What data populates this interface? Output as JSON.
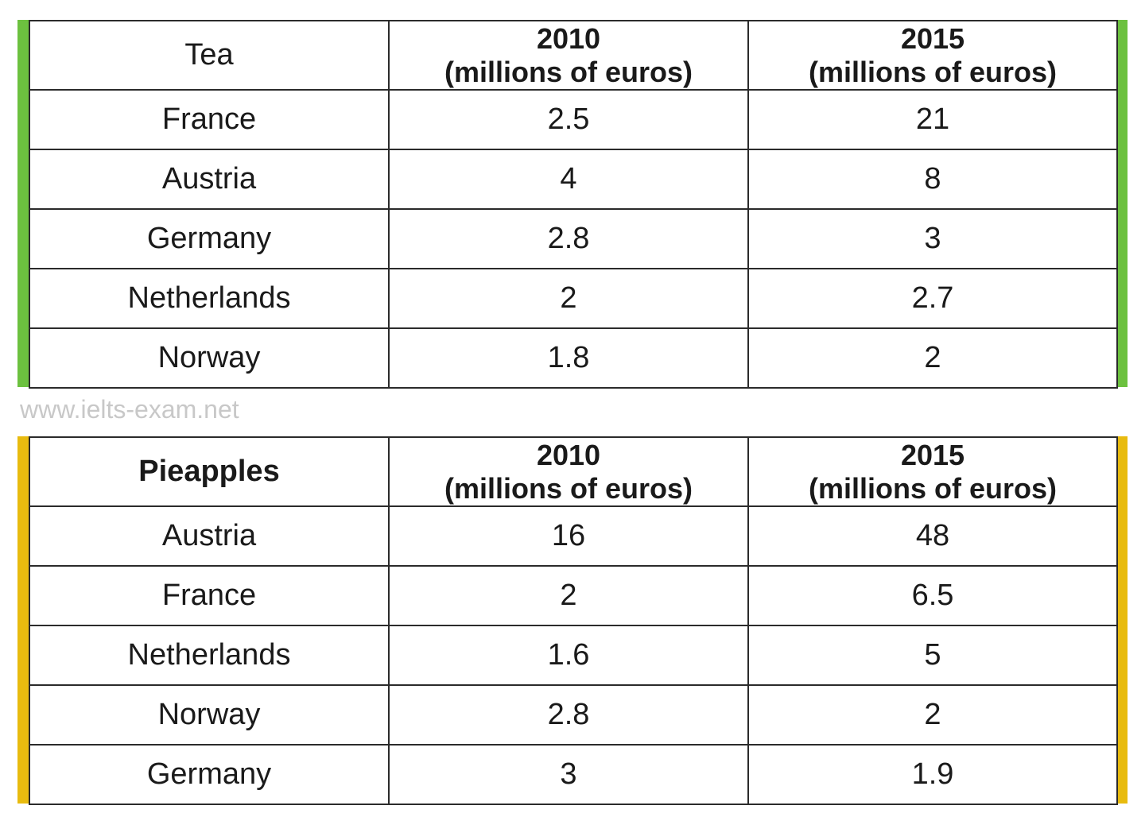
{
  "watermark": "www.ielts-exam.net",
  "colors": {
    "tea_accent": "#6cc13f",
    "pineapple_accent": "#e8bb0f",
    "border": "#2b2b2b",
    "watermark": "#c8c8c8"
  },
  "chart_data": [
    {
      "type": "table",
      "accent_color": "#6cc13f",
      "header": {
        "product": "Tea",
        "product_bold": false,
        "col1_year": "2010",
        "col1_unit": "(millions of euros)",
        "col2_year": "2015",
        "col2_unit": "(millions of euros)"
      },
      "rows": [
        {
          "country": "France",
          "v2010": "2.5",
          "v2015": "21"
        },
        {
          "country": "Austria",
          "v2010": "4",
          "v2015": "8"
        },
        {
          "country": "Germany",
          "v2010": "2.8",
          "v2015": "3"
        },
        {
          "country": "Netherlands",
          "v2010": "2",
          "v2015": "2.7"
        },
        {
          "country": "Norway",
          "v2010": "1.8",
          "v2015": "2"
        }
      ]
    },
    {
      "type": "table",
      "accent_color": "#e8bb0f",
      "header": {
        "product": "Pieapples",
        "product_bold": true,
        "col1_year": "2010",
        "col1_unit": "(millions of euros)",
        "col2_year": "2015",
        "col2_unit": "(millions of euros)"
      },
      "rows": [
        {
          "country": "Austria",
          "v2010": "16",
          "v2015": "48"
        },
        {
          "country": "France",
          "v2010": "2",
          "v2015": "6.5"
        },
        {
          "country": "Netherlands",
          "v2010": "1.6",
          "v2015": "5"
        },
        {
          "country": "Norway",
          "v2010": "2.8",
          "v2015": "2"
        },
        {
          "country": "Germany",
          "v2010": "3",
          "v2015": "1.9"
        }
      ]
    }
  ]
}
